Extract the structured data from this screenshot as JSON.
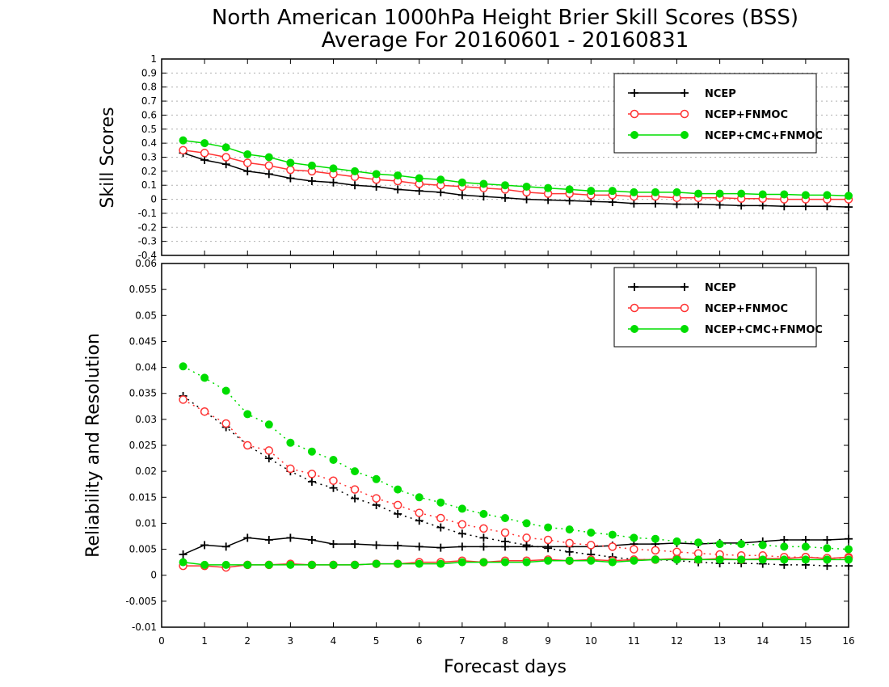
{
  "title_line1": "North American 1000hPa Height Brier Skill Scores (BSS)",
  "title_line2": "Average For 20160601 - 20160831",
  "xlabel": "Forecast days",
  "colors": {
    "ncep": "#000000",
    "ncep_fnmoc": "#ff3333",
    "ncep_cmc_fnmoc": "#00dd00",
    "grid": "#b0b0b0"
  },
  "chart_data": [
    {
      "type": "line",
      "panel": "top",
      "ylabel": "Skill Scores",
      "xlim": [
        0,
        16
      ],
      "ylim": [
        -0.4,
        1
      ],
      "x_ticks": [
        "0",
        "1",
        "2",
        "3",
        "4",
        "5",
        "6",
        "7",
        "8",
        "9",
        "10",
        "11",
        "12",
        "13",
        "14",
        "15",
        "16"
      ],
      "y_ticks": [
        "1",
        "0.9",
        "0.8",
        "0.7",
        "0.6",
        "0.5",
        "0.4",
        "0.3",
        "0.2",
        "0.1",
        "0",
        "-0.1",
        "-0.2",
        "-0.3",
        "-0.4"
      ],
      "y_tick_values": [
        1,
        0.9,
        0.8,
        0.7,
        0.6,
        0.5,
        0.4,
        0.3,
        0.2,
        0.1,
        0,
        -0.1,
        -0.2,
        -0.3,
        -0.4
      ],
      "grid": "horizontal dotted",
      "legend_position": "top-right",
      "x": [
        0.5,
        1,
        1.5,
        2,
        2.5,
        3,
        3.5,
        4,
        4.5,
        5,
        5.5,
        6,
        6.5,
        7,
        7.5,
        8,
        8.5,
        9,
        9.5,
        10,
        10.5,
        11,
        11.5,
        12,
        12.5,
        13,
        13.5,
        14,
        14.5,
        15,
        15.5,
        16
      ],
      "series": [
        {
          "name": "NCEP",
          "marker": "plus",
          "line": "solid",
          "color": "#000000",
          "values": [
            0.33,
            0.28,
            0.25,
            0.2,
            0.18,
            0.15,
            0.13,
            0.12,
            0.1,
            0.09,
            0.07,
            0.06,
            0.05,
            0.03,
            0.02,
            0.01,
            0.0,
            -0.005,
            -0.01,
            -0.015,
            -0.02,
            -0.03,
            -0.03,
            -0.035,
            -0.035,
            -0.04,
            -0.045,
            -0.045,
            -0.05,
            -0.05,
            -0.05,
            -0.055
          ]
        },
        {
          "name": "NCEP+FNMOC",
          "marker": "open-circle",
          "line": "solid",
          "color": "#ff3333",
          "values": [
            0.35,
            0.33,
            0.3,
            0.26,
            0.24,
            0.21,
            0.2,
            0.18,
            0.16,
            0.14,
            0.13,
            0.11,
            0.1,
            0.09,
            0.08,
            0.07,
            0.05,
            0.04,
            0.04,
            0.03,
            0.03,
            0.02,
            0.02,
            0.01,
            0.01,
            0.01,
            0.005,
            0.005,
            0.0,
            0.0,
            0.0,
            0.0
          ]
        },
        {
          "name": "NCEP+CMC+FNMOC",
          "marker": "filled-circle",
          "line": "solid",
          "color": "#00dd00",
          "values": [
            0.42,
            0.4,
            0.37,
            0.32,
            0.3,
            0.26,
            0.24,
            0.22,
            0.2,
            0.18,
            0.17,
            0.15,
            0.14,
            0.12,
            0.11,
            0.1,
            0.09,
            0.08,
            0.07,
            0.06,
            0.06,
            0.05,
            0.05,
            0.05,
            0.04,
            0.04,
            0.04,
            0.035,
            0.035,
            0.03,
            0.03,
            0.025
          ]
        }
      ]
    },
    {
      "type": "line",
      "panel": "bottom",
      "ylabel": "Reliability and Resolution",
      "xlim": [
        0,
        16
      ],
      "ylim": [
        -0.01,
        0.06
      ],
      "x_ticks": [
        "0",
        "1",
        "2",
        "3",
        "4",
        "5",
        "6",
        "7",
        "8",
        "9",
        "10",
        "11",
        "12",
        "13",
        "14",
        "15",
        "16"
      ],
      "y_ticks": [
        "0.06",
        "0.055",
        "0.05",
        "0.045",
        "0.04",
        "0.035",
        "0.03",
        "0.025",
        "0.02",
        "0.015",
        "0.01",
        "0.005",
        "0",
        "-0.005",
        "-0.01"
      ],
      "y_tick_values": [
        0.06,
        0.055,
        0.05,
        0.045,
        0.04,
        0.035,
        0.03,
        0.025,
        0.02,
        0.015,
        0.01,
        0.005,
        0,
        -0.005,
        -0.01
      ],
      "grid": "none",
      "legend_position": "top-right",
      "x": [
        0.5,
        1,
        1.5,
        2,
        2.5,
        3,
        3.5,
        4,
        4.5,
        5,
        5.5,
        6,
        6.5,
        7,
        7.5,
        8,
        8.5,
        9,
        9.5,
        10,
        10.5,
        11,
        11.5,
        12,
        12.5,
        13,
        13.5,
        14,
        14.5,
        15,
        15.5,
        16
      ],
      "series": [
        {
          "name": "NCEP",
          "metric": "reliability",
          "marker": "plus",
          "line": "solid",
          "color": "#000000",
          "values": [
            0.004,
            0.0058,
            0.0055,
            0.0072,
            0.0068,
            0.0072,
            0.0068,
            0.006,
            0.006,
            0.0058,
            0.0057,
            0.0055,
            0.0053,
            0.0055,
            0.0055,
            0.0055,
            0.0055,
            0.0055,
            0.0055,
            0.0055,
            0.0057,
            0.006,
            0.006,
            0.0062,
            0.006,
            0.0062,
            0.0062,
            0.0065,
            0.0068,
            0.0068,
            0.0068,
            0.007
          ]
        },
        {
          "name": "NCEP",
          "metric": "resolution",
          "marker": "plus",
          "line": "dotted",
          "color": "#000000",
          "values": [
            0.0345,
            0.0315,
            0.0285,
            0.025,
            0.0225,
            0.02,
            0.018,
            0.0168,
            0.0148,
            0.0135,
            0.0118,
            0.0105,
            0.0092,
            0.008,
            0.0072,
            0.0065,
            0.0058,
            0.0052,
            0.0045,
            0.004,
            0.0035,
            0.003,
            0.003,
            0.0028,
            0.0025,
            0.0023,
            0.0023,
            0.0022,
            0.002,
            0.002,
            0.0018,
            0.0018
          ]
        },
        {
          "name": "NCEP+FNMOC",
          "metric": "reliability",
          "marker": "open-circle",
          "line": "solid",
          "color": "#ff3333",
          "values": [
            0.0018,
            0.0018,
            0.0015,
            0.002,
            0.002,
            0.0022,
            0.002,
            0.002,
            0.002,
            0.0022,
            0.0022,
            0.0025,
            0.0025,
            0.0028,
            0.0025,
            0.0028,
            0.0028,
            0.003,
            0.0028,
            0.003,
            0.0028,
            0.003,
            0.003,
            0.0032,
            0.003,
            0.0032,
            0.003,
            0.0032,
            0.0032,
            0.0035,
            0.0032,
            0.0035
          ]
        },
        {
          "name": "NCEP+FNMOC",
          "metric": "resolution",
          "marker": "open-circle",
          "line": "dotted",
          "color": "#ff3333",
          "values": [
            0.0338,
            0.0315,
            0.0292,
            0.025,
            0.024,
            0.0205,
            0.0195,
            0.0182,
            0.0165,
            0.0148,
            0.0135,
            0.012,
            0.011,
            0.0098,
            0.009,
            0.0082,
            0.0072,
            0.0068,
            0.0062,
            0.0058,
            0.0055,
            0.005,
            0.0048,
            0.0045,
            0.0042,
            0.004,
            0.0038,
            0.0038,
            0.0035,
            0.0035,
            0.0033,
            0.0033
          ]
        },
        {
          "name": "NCEP+CMC+FNMOC",
          "metric": "reliability",
          "marker": "filled-circle",
          "line": "solid",
          "color": "#00dd00",
          "values": [
            0.0025,
            0.002,
            0.002,
            0.002,
            0.002,
            0.002,
            0.002,
            0.002,
            0.002,
            0.0022,
            0.0022,
            0.0022,
            0.0022,
            0.0025,
            0.0025,
            0.0025,
            0.0025,
            0.0028,
            0.0028,
            0.0028,
            0.0025,
            0.0028,
            0.003,
            0.003,
            0.003,
            0.003,
            0.003,
            0.003,
            0.003,
            0.003,
            0.003,
            0.003
          ]
        },
        {
          "name": "NCEP+CMC+FNMOC",
          "metric": "resolution",
          "marker": "filled-circle",
          "line": "dotted",
          "color": "#00dd00",
          "values": [
            0.0402,
            0.038,
            0.0355,
            0.031,
            0.029,
            0.0255,
            0.0238,
            0.0222,
            0.02,
            0.0185,
            0.0165,
            0.015,
            0.014,
            0.0128,
            0.0118,
            0.011,
            0.01,
            0.0092,
            0.0088,
            0.0082,
            0.0078,
            0.0072,
            0.007,
            0.0065,
            0.0063,
            0.006,
            0.006,
            0.0058,
            0.0055,
            0.0055,
            0.0052,
            0.005
          ]
        }
      ]
    }
  ],
  "legend": [
    {
      "label": "NCEP",
      "marker": "plus",
      "color": "#000000"
    },
    {
      "label": "NCEP+FNMOC",
      "marker": "open-circle",
      "color": "#ff3333"
    },
    {
      "label": "NCEP+CMC+FNMOC",
      "marker": "filled-circle",
      "color": "#00dd00"
    }
  ]
}
